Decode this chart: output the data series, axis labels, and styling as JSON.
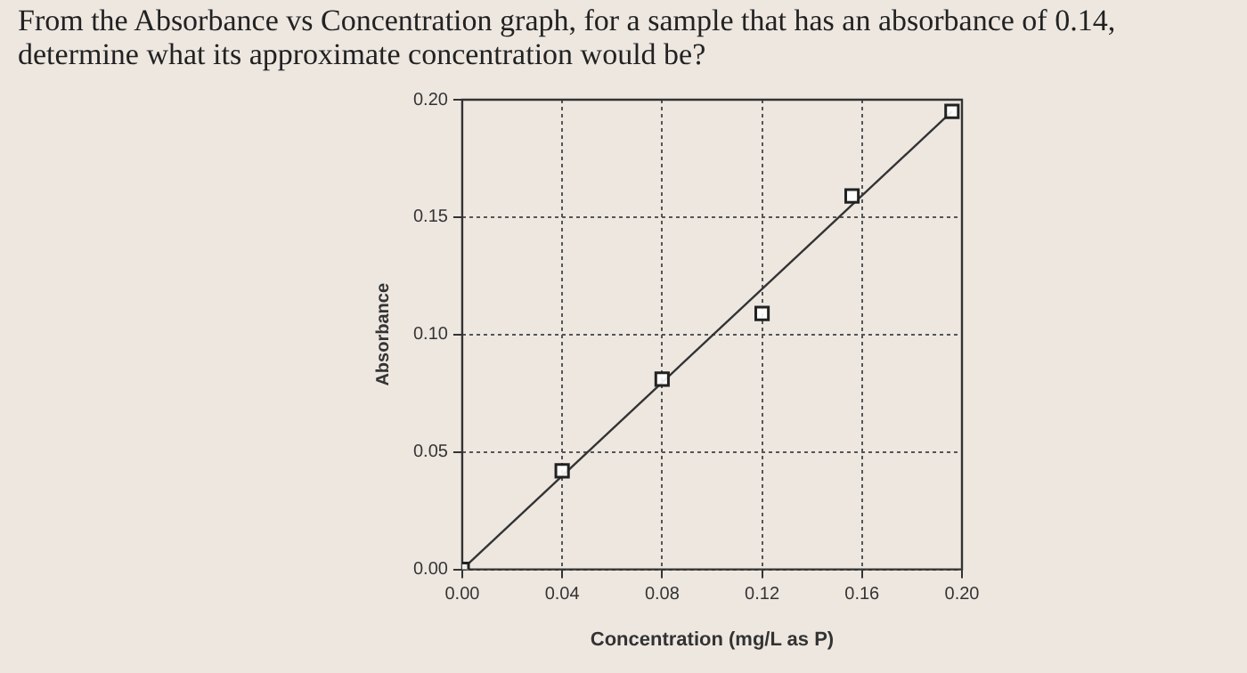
{
  "chart_data": {
    "type": "scatter",
    "title": "From the Absorbance vs Concentration graph, for a sample that has an absorbance of 0.14, determine what its approximate concentration would be?",
    "xlabel": "Concentration (mg/L as P)",
    "ylabel": "Absorbance",
    "series": [
      {
        "type": "scatter",
        "color": "#222222",
        "marker": "square",
        "x": [
          0,
          0.04,
          0.08,
          0.12,
          0.156,
          0.196
        ],
        "values": [
          0,
          0.042,
          0.081,
          0.109,
          0.159,
          0.195
        ]
      },
      {
        "type": "line",
        "color": "#333333",
        "marker": "none",
        "line_style": "solid",
        "x": [
          0,
          0.196
        ],
        "values": [
          0,
          0.195
        ]
      }
    ],
    "xlim": [
      0,
      0.2
    ],
    "xticks": [
      {
        "value": 0,
        "label": "0.00"
      },
      {
        "value": 0.04,
        "label": "0.04"
      },
      {
        "value": 0.08,
        "label": "0.08"
      },
      {
        "value": 0.12,
        "label": "0.12"
      },
      {
        "value": 0.16,
        "label": "0.16"
      },
      {
        "value": 0.2,
        "label": "0.20"
      }
    ],
    "ylim": [
      0,
      0.2
    ],
    "yticks": [
      {
        "value": 0,
        "label": "0.00"
      },
      {
        "value": 0.05,
        "label": "0.05"
      },
      {
        "value": 0.1,
        "label": "0.10"
      },
      {
        "value": 0.15,
        "label": "0.15"
      },
      {
        "value": 0.2,
        "label": "0.20"
      }
    ],
    "grid": true,
    "legend": false
  }
}
